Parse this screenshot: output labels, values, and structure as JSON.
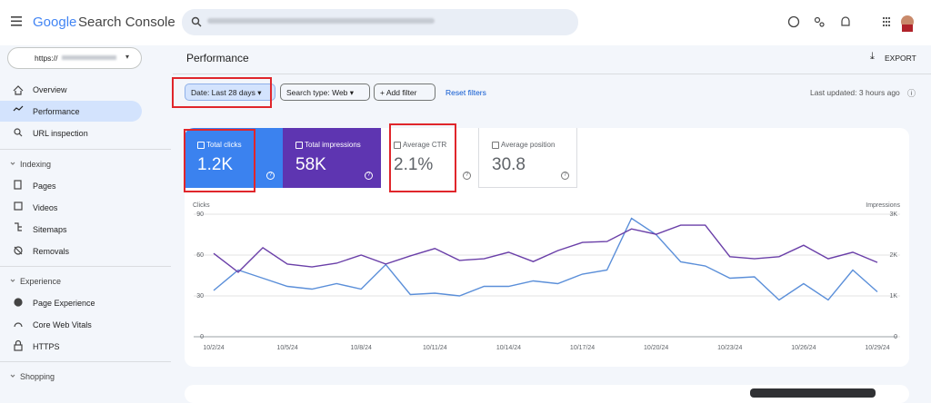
{
  "header": {
    "brand_google": "Google",
    "brand_product": "Search Console"
  },
  "property": {
    "url": "https://"
  },
  "nav": {
    "top": [
      "Overview",
      "Performance",
      "URL inspection"
    ],
    "indexing": {
      "title": "Indexing",
      "items": [
        "Pages",
        "Videos",
        "Sitemaps",
        "Removals"
      ]
    },
    "experience": {
      "title": "Experience",
      "items": [
        "Page Experience",
        "Core Web Vitals",
        "HTTPS"
      ]
    },
    "shopping": {
      "title": "Shopping"
    }
  },
  "page": {
    "title": "Performance",
    "export": "EXPORT",
    "filters": [
      "Date: Last 28 days",
      "Search type: Web",
      "Add filter"
    ],
    "reset": "Reset filters",
    "updated": "Last updated: 3 hours ago"
  },
  "metrics": [
    {
      "label": "Total clicks",
      "value": "1.2K"
    },
    {
      "label": "Total impressions",
      "value": "58K"
    },
    {
      "label": "Average CTR",
      "value": "2.1%"
    },
    {
      "label": "Average position",
      "value": "30.8"
    }
  ],
  "chart_data": {
    "type": "line",
    "y_label": "Clicks",
    "y2_label": "Impressions",
    "categories": [
      "10/2/24",
      null,
      null,
      "10/5/24",
      null,
      null,
      "10/8/24",
      null,
      null,
      "10/11/24",
      null,
      null,
      "10/14/24",
      null,
      null,
      "10/17/24",
      null,
      null,
      "10/20/24",
      null,
      null,
      "10/23/24",
      null,
      null,
      "10/26/24",
      null,
      null,
      "10/29/24"
    ],
    "ylim": [
      0,
      90
    ],
    "yticks": [
      0,
      30,
      60,
      90
    ],
    "y2lim": [
      0,
      3000
    ],
    "y2ticks": [
      0,
      {
        "value": 1000,
        "label": "1K"
      },
      {
        "value": 2000,
        "label": "2K"
      },
      {
        "value": 3000,
        "label": "3K"
      }
    ],
    "grid": true,
    "series": [
      {
        "name": "Clicks",
        "color": "#5b8fd9",
        "values": [
          34,
          49,
          43,
          37,
          35,
          39,
          35,
          53,
          31,
          32,
          30,
          37,
          37,
          41,
          39,
          46,
          49,
          87,
          75,
          55,
          52,
          43,
          44,
          27,
          39,
          27,
          49,
          33
        ]
      },
      {
        "name": "Impressions",
        "color": "#6a3fa8",
        "axis": "y2",
        "values": [
          2040,
          1580,
          2180,
          1780,
          1710,
          1800,
          2000,
          1780,
          1980,
          2160,
          1870,
          1910,
          2070,
          1840,
          2110,
          2310,
          2330,
          2640,
          2510,
          2730,
          2730,
          1960,
          1910,
          1960,
          2240,
          1910,
          2070,
          1820
        ]
      }
    ]
  }
}
